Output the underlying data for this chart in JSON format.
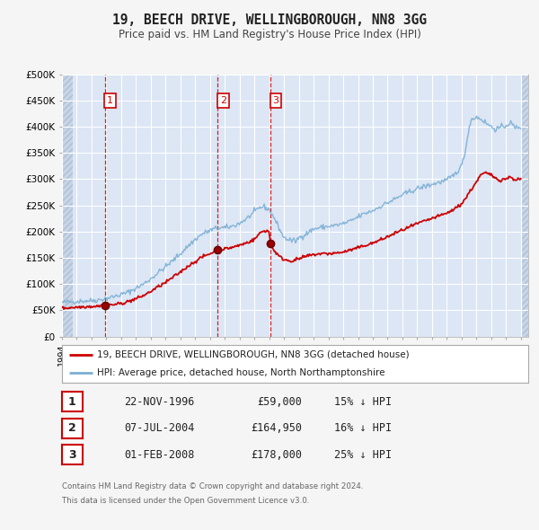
{
  "title": "19, BEECH DRIVE, WELLINGBOROUGH, NN8 3GG",
  "subtitle": "Price paid vs. HM Land Registry's House Price Index (HPI)",
  "fig_bg_color": "#f5f5f5",
  "plot_bg_color": "#dce6f5",
  "hatch_color": "#c8d5e8",
  "grid_color": "#ffffff",
  "red_line_color": "#cc0000",
  "blue_line_color": "#7bafd4",
  "ylim": [
    0,
    500000
  ],
  "yticks": [
    0,
    50000,
    100000,
    150000,
    200000,
    250000,
    300000,
    350000,
    400000,
    450000,
    500000
  ],
  "ytick_labels": [
    "£0",
    "£50K",
    "£100K",
    "£150K",
    "£200K",
    "£250K",
    "£300K",
    "£350K",
    "£400K",
    "£450K",
    "£500K"
  ],
  "xlim_start": 1994.0,
  "xlim_end": 2025.5,
  "transactions": [
    {
      "num": 1,
      "date_x": 1996.9,
      "price": 59000,
      "label": "22-NOV-1996",
      "amount": "£59,000",
      "hpi_pct": "15% ↓ HPI"
    },
    {
      "num": 2,
      "date_x": 2004.52,
      "price": 164950,
      "label": "07-JUL-2004",
      "amount": "£164,950",
      "hpi_pct": "16% ↓ HPI"
    },
    {
      "num": 3,
      "date_x": 2008.08,
      "price": 178000,
      "label": "01-FEB-2008",
      "amount": "£178,000",
      "hpi_pct": "25% ↓ HPI"
    }
  ],
  "legend_line1": "19, BEECH DRIVE, WELLINGBOROUGH, NN8 3GG (detached house)",
  "legend_line2": "HPI: Average price, detached house, North Northamptonshire",
  "footer1": "Contains HM Land Registry data © Crown copyright and database right 2024.",
  "footer2": "This data is licensed under the Open Government Licence v3.0."
}
